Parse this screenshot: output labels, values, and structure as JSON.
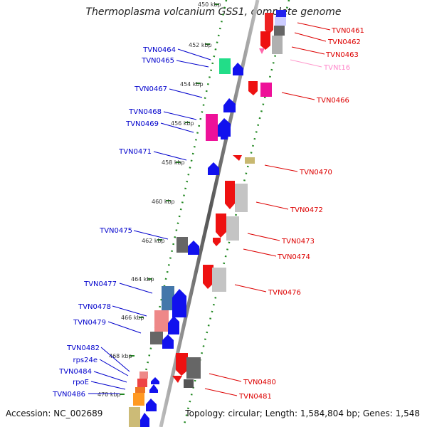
{
  "title": "Thermoplasma volcanium GSS1, complete genome",
  "accession": "Accession: NC_002689",
  "topology": "Topology: circular; Length: 1,584,804 bp; Genes: 1,548",
  "kbp_labels": [
    "450 kbp",
    "452 kbp",
    "454 kbp",
    "456 kbp",
    "458 kbp",
    "460 kbp",
    "462 kbp",
    "464 kbp",
    "466 kbp",
    "468 kbp",
    "470 kbp"
  ],
  "left_genes": [
    "TVN0464",
    "TVN0465",
    "TVN0467",
    "TVN0468",
    "TVN0469",
    "TVN0471",
    "TVN0475",
    "TVN0477",
    "TVN0478",
    "TVN0479",
    "TVN0482",
    "rps24e",
    "TVN0484",
    "rpoE",
    "TVN0486"
  ],
  "right_genes": [
    "TVN0461",
    "TVN0462",
    "TVN0463",
    "TVNt16",
    "TVN0466",
    "TVN0470",
    "TVN0472",
    "TVN0473",
    "TVN0474",
    "TVN0476",
    "TVN0480",
    "TVN0481"
  ],
  "colors": {
    "minus_strand_label": "#0000cc",
    "plus_strand_label": "#dd0000",
    "trna_label": "#ff88cc",
    "backbone": "#888888",
    "ticks": "#228822"
  }
}
